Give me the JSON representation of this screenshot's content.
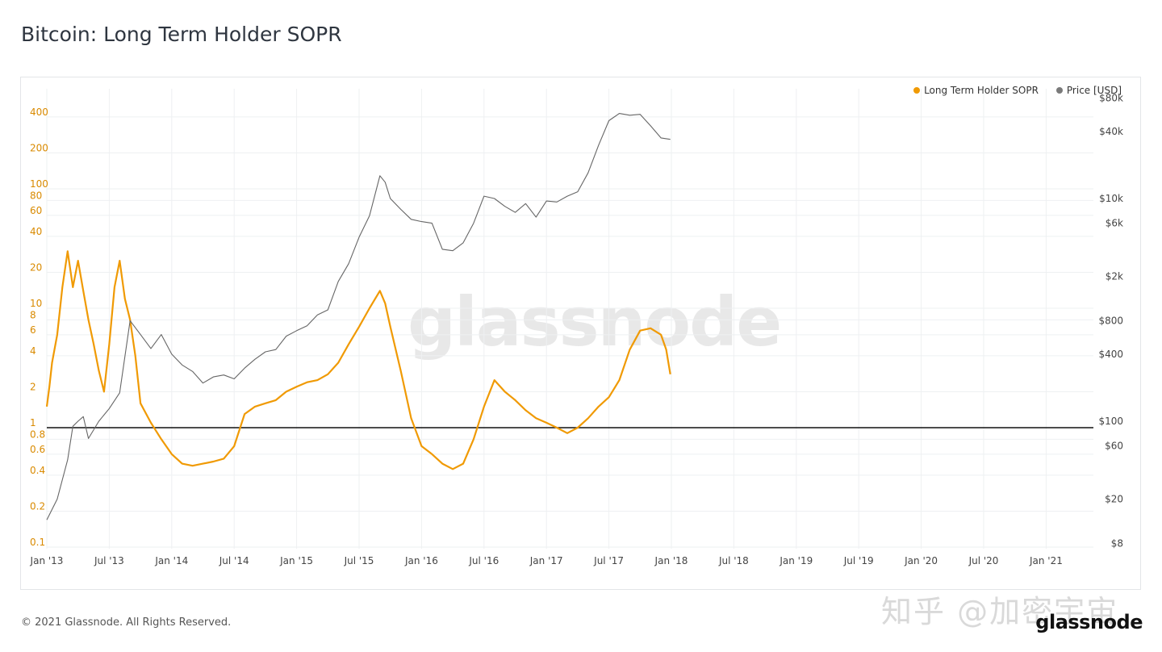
{
  "title": "Bitcoin: Long Term Holder SOPR",
  "legend": {
    "sopr_label": "Long Term Holder SOPR",
    "price_label": "Price [USD]"
  },
  "footer": "© 2021 Glassnode. All Rights Reserved.",
  "brand": "glassnode",
  "watermark": "glassnode",
  "cn_watermark": "知乎 @加密宇宙",
  "colors": {
    "sopr": "#f09a04",
    "price": "#666666",
    "baseline": "#111111",
    "grid": "#eef0f2"
  },
  "chart_data": {
    "type": "line",
    "x_ticks": [
      "Jan '13",
      "Jul '13",
      "Jan '14",
      "Jul '14",
      "Jan '15",
      "Jul '15",
      "Jan '16",
      "Jul '16",
      "Jan '17",
      "Jul '17",
      "Jan '18",
      "Jul '18",
      "Jan '19",
      "Jul '19",
      "Jan '20",
      "Jul '20",
      "Jan '21"
    ],
    "y_left": {
      "scale": "log",
      "ticks": [
        "0.1",
        "0.2",
        "0.4",
        "0.6",
        "0.8",
        "1",
        "2",
        "4",
        "6",
        "8",
        "10",
        "20",
        "40",
        "60",
        "80",
        "100",
        "200",
        "400"
      ]
    },
    "y_right": {
      "scale": "log",
      "ticks": [
        "$8",
        "$20",
        "$60",
        "$100",
        "$400",
        "$800",
        "$2k",
        "$6k",
        "$10k",
        "$40k",
        "$80k"
      ]
    },
    "baseline": 1,
    "series": [
      {
        "name": "Long Term Holder SOPR",
        "axis": "left",
        "points": [
          [
            0,
            1.5
          ],
          [
            0.25,
            2.2
          ],
          [
            0.5,
            3.5
          ],
          [
            1,
            6
          ],
          [
            1.5,
            15
          ],
          [
            2,
            30
          ],
          [
            2.5,
            15
          ],
          [
            3,
            25
          ],
          [
            3.5,
            14
          ],
          [
            4,
            8
          ],
          [
            4.5,
            5
          ],
          [
            5,
            3
          ],
          [
            5.5,
            2
          ],
          [
            6,
            5
          ],
          [
            6.5,
            15
          ],
          [
            7,
            25
          ],
          [
            7.5,
            12
          ],
          [
            8,
            8
          ],
          [
            8.5,
            4
          ],
          [
            9,
            1.6
          ],
          [
            10,
            1.1
          ],
          [
            11,
            0.8
          ],
          [
            12,
            0.6
          ],
          [
            13,
            0.5
          ],
          [
            14,
            0.48
          ],
          [
            15,
            0.5
          ],
          [
            16,
            0.52
          ],
          [
            17,
            0.55
          ],
          [
            18,
            0.7
          ],
          [
            19,
            1.3
          ],
          [
            20,
            1.5
          ],
          [
            21,
            1.6
          ],
          [
            22,
            1.7
          ],
          [
            23,
            2.0
          ],
          [
            24,
            2.2
          ],
          [
            25,
            2.4
          ],
          [
            26,
            2.5
          ],
          [
            27,
            2.8
          ],
          [
            28,
            3.5
          ],
          [
            29,
            5
          ],
          [
            30,
            7
          ],
          [
            31,
            10
          ],
          [
            32,
            14
          ],
          [
            32.5,
            11
          ],
          [
            33,
            7
          ],
          [
            34,
            3
          ],
          [
            35,
            1.2
          ],
          [
            36,
            0.7
          ],
          [
            37,
            0.6
          ],
          [
            38,
            0.5
          ],
          [
            39,
            0.45
          ],
          [
            40,
            0.5
          ],
          [
            41,
            0.8
          ],
          [
            42,
            1.5
          ],
          [
            43,
            2.5
          ],
          [
            44,
            2.0
          ],
          [
            45,
            1.7
          ],
          [
            46,
            1.4
          ],
          [
            47,
            1.2
          ],
          [
            48,
            1.1
          ],
          [
            49,
            1.0
          ],
          [
            50,
            0.9
          ],
          [
            51,
            1.0
          ],
          [
            52,
            1.2
          ],
          [
            53,
            1.5
          ],
          [
            54,
            1.8
          ],
          [
            55,
            2.5
          ],
          [
            56,
            4.5
          ],
          [
            57,
            6.5
          ],
          [
            58,
            6.8
          ],
          [
            59,
            6
          ],
          [
            59.5,
            4.5
          ],
          [
            59.9,
            2.8
          ]
        ]
      },
      {
        "name": "Price [USD]",
        "axis": "right",
        "points": [
          [
            0,
            13
          ],
          [
            1,
            20
          ],
          [
            2,
            45
          ],
          [
            2.5,
            90
          ],
          [
            3,
            100
          ],
          [
            3.5,
            110
          ],
          [
            4,
            70
          ],
          [
            5,
            100
          ],
          [
            6,
            130
          ],
          [
            7,
            180
          ],
          [
            8,
            800
          ],
          [
            9,
            600
          ],
          [
            10,
            450
          ],
          [
            11,
            600
          ],
          [
            12,
            400
          ],
          [
            13,
            320
          ],
          [
            14,
            280
          ],
          [
            15,
            220
          ],
          [
            16,
            250
          ],
          [
            17,
            260
          ],
          [
            18,
            240
          ],
          [
            19,
            300
          ],
          [
            20,
            360
          ],
          [
            21,
            420
          ],
          [
            22,
            440
          ],
          [
            23,
            580
          ],
          [
            24,
            650
          ],
          [
            25,
            720
          ],
          [
            26,
            900
          ],
          [
            27,
            1000
          ],
          [
            28,
            1800
          ],
          [
            29,
            2600
          ],
          [
            30,
            4500
          ],
          [
            31,
            7000
          ],
          [
            32,
            16000
          ],
          [
            32.5,
            14000
          ],
          [
            33,
            10000
          ],
          [
            34,
            8000
          ],
          [
            35,
            6500
          ],
          [
            36,
            6200
          ],
          [
            37,
            6000
          ],
          [
            38,
            3500
          ],
          [
            39,
            3400
          ],
          [
            40,
            4000
          ],
          [
            41,
            6000
          ],
          [
            42,
            10500
          ],
          [
            43,
            10000
          ],
          [
            44,
            8500
          ],
          [
            45,
            7500
          ],
          [
            46,
            9000
          ],
          [
            47,
            6800
          ],
          [
            48,
            9500
          ],
          [
            49,
            9300
          ],
          [
            50,
            10500
          ],
          [
            51,
            11500
          ],
          [
            52,
            17000
          ],
          [
            53,
            30000
          ],
          [
            54,
            50000
          ],
          [
            55,
            58000
          ],
          [
            56,
            56000
          ],
          [
            57,
            57000
          ],
          [
            58,
            45000
          ],
          [
            59,
            35000
          ],
          [
            59.9,
            34000
          ]
        ]
      }
    ]
  }
}
